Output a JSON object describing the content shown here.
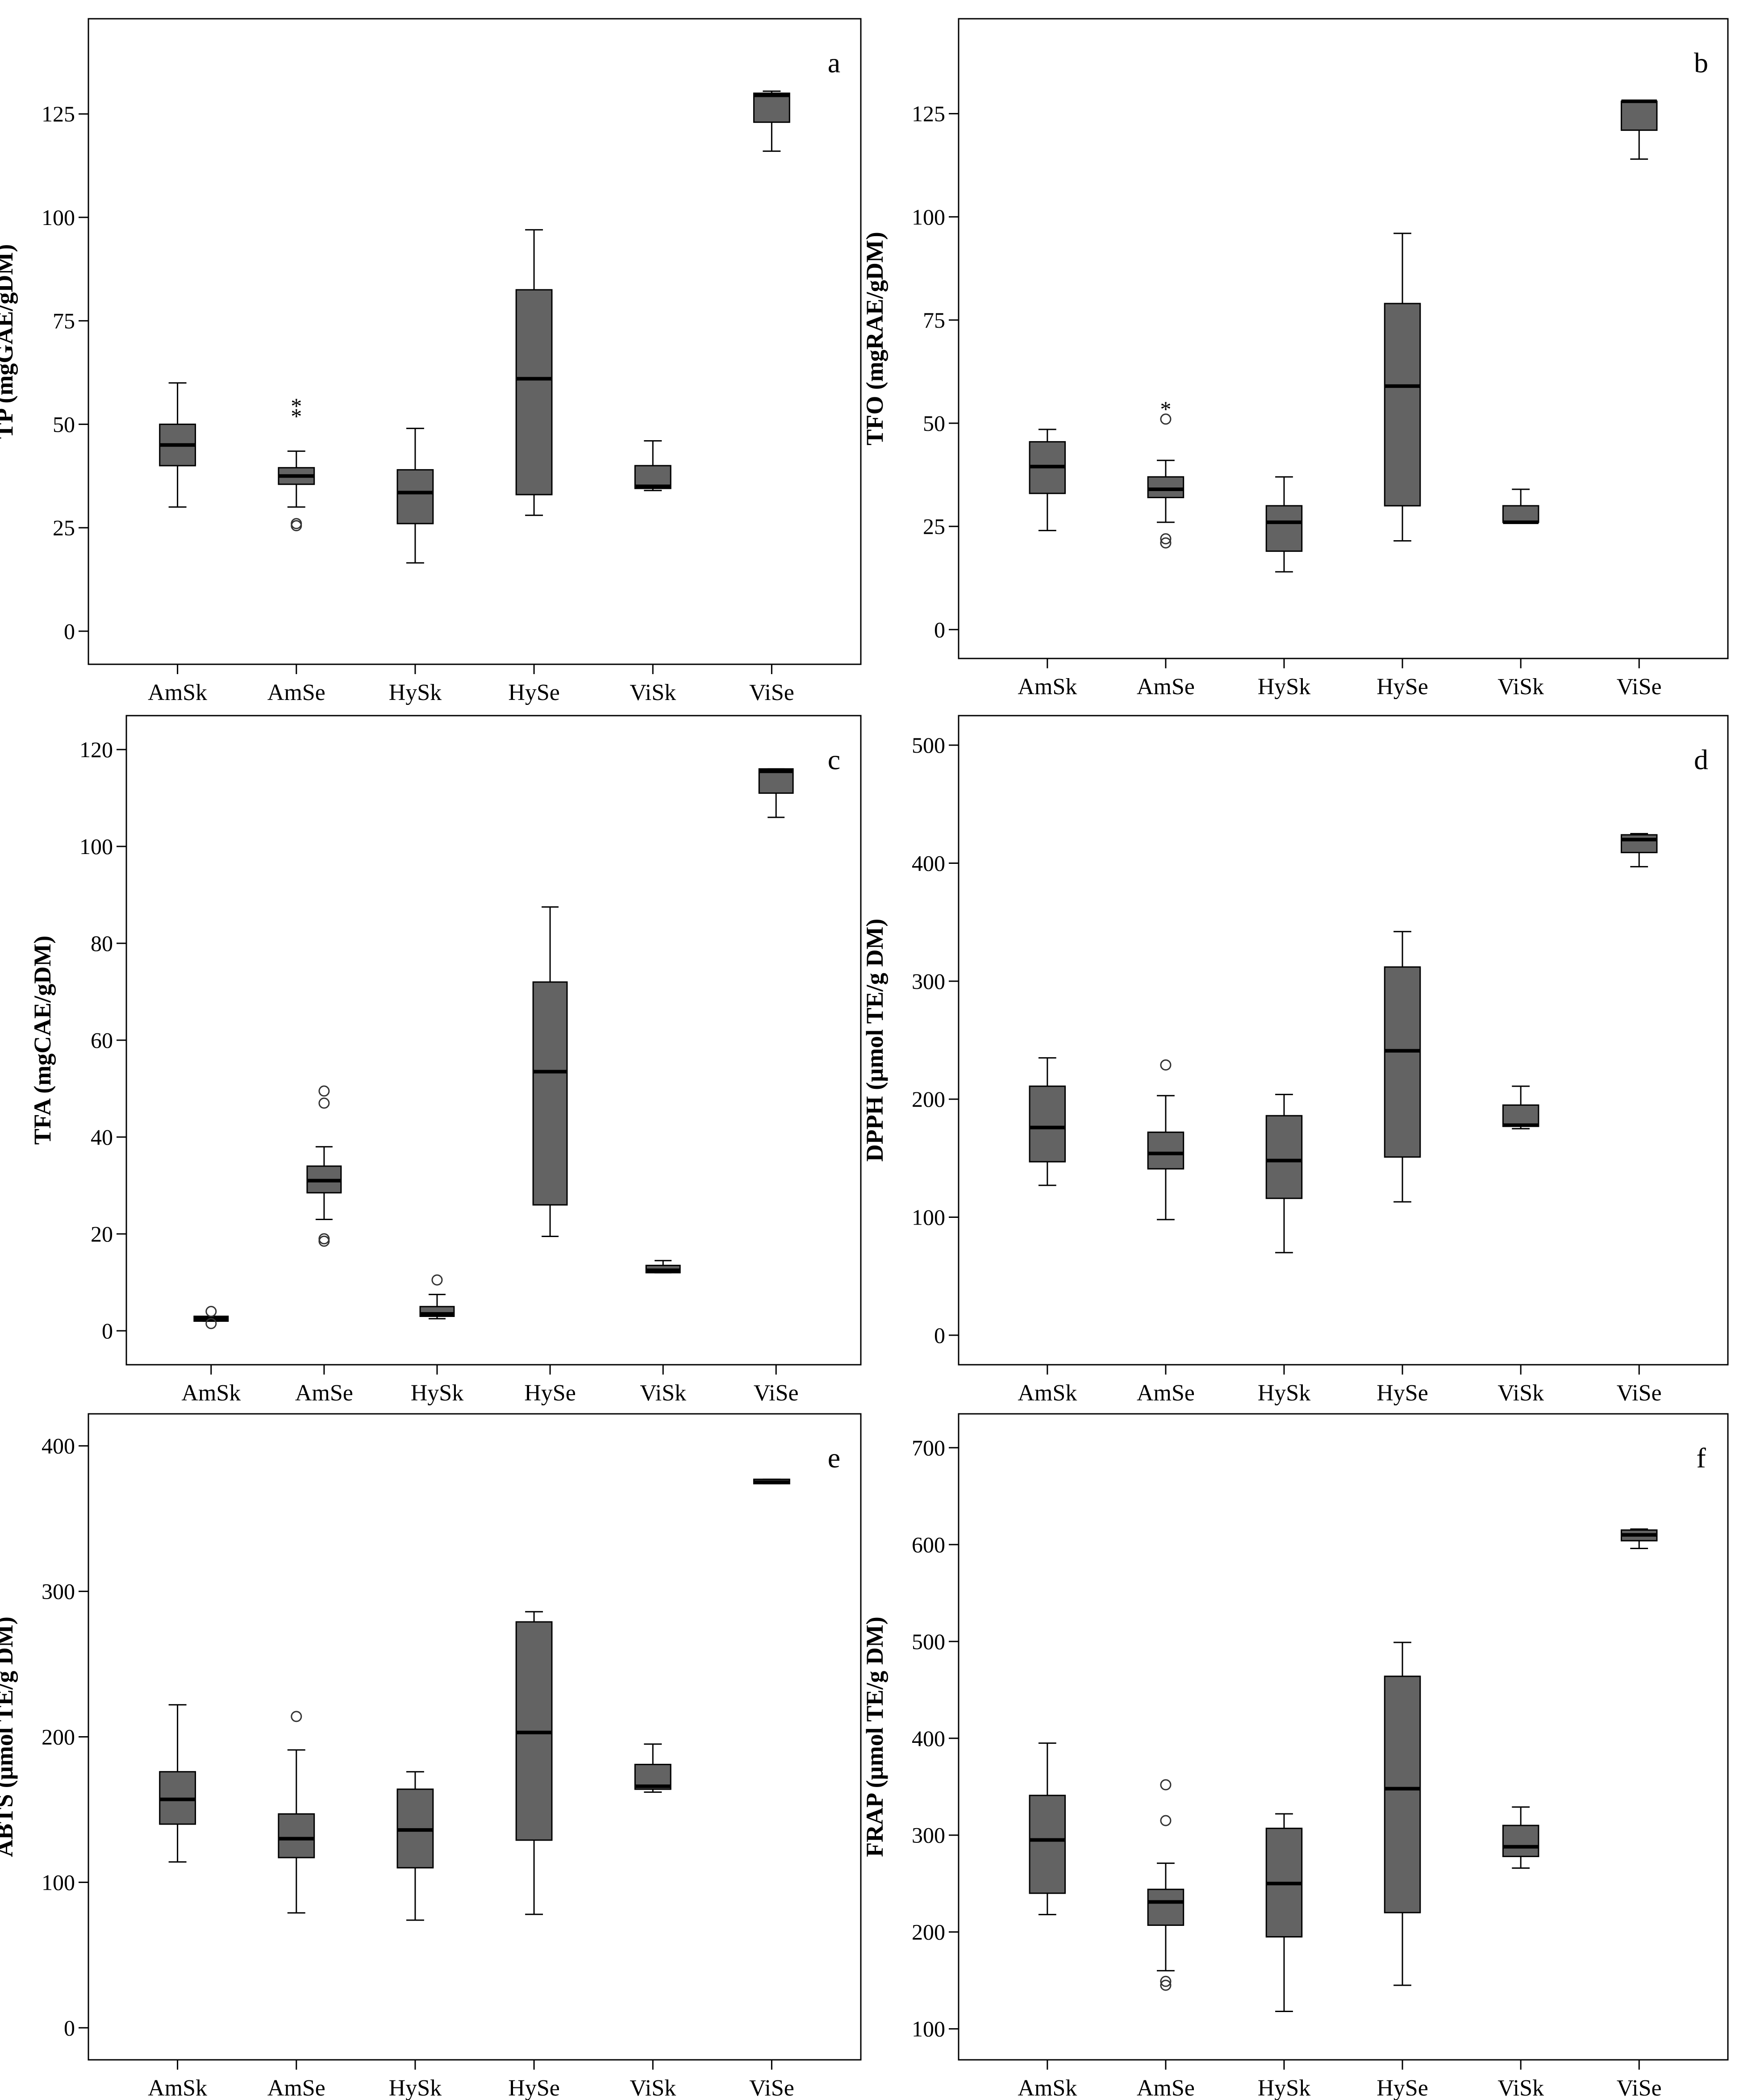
{
  "figure": {
    "background": "#ffffff",
    "box_fill": "#636363",
    "line_color": "#000000",
    "outlier_marker": "circle",
    "extreme_marker": "*"
  },
  "chart_data": [
    {
      "type": "boxplot",
      "panel": "a",
      "ylabel": "TP (mgGAE/gDM)",
      "categories": [
        "AmSk",
        "AmSe",
        "HySk",
        "HySe",
        "ViSk",
        "ViSe"
      ],
      "yticks": [
        0,
        25,
        50,
        75,
        100,
        125
      ],
      "tick_labels": [
        "0",
        "25",
        "50",
        "75",
        "100",
        "125"
      ],
      "ylim": [
        -8,
        148
      ],
      "boxes": [
        {
          "whisker_low": 30,
          "q1": 40,
          "median": 45,
          "q3": 50,
          "whisker_high": 60,
          "outliers": [],
          "extremes": []
        },
        {
          "whisker_low": 30,
          "q1": 35.5,
          "median": 37.5,
          "q3": 39.5,
          "whisker_high": 43.5,
          "outliers": [
            25.5,
            26
          ],
          "extremes": [
            52.5,
            55
          ]
        },
        {
          "whisker_low": 16.5,
          "q1": 26,
          "median": 33.5,
          "q3": 39,
          "whisker_high": 49,
          "outliers": [],
          "extremes": []
        },
        {
          "whisker_low": 28,
          "q1": 33,
          "median": 61,
          "q3": 82.5,
          "whisker_high": 97,
          "outliers": [],
          "extremes": []
        },
        {
          "whisker_low": 34,
          "q1": 34.5,
          "median": 35,
          "q3": 40,
          "whisker_high": 46,
          "outliers": [],
          "extremes": []
        },
        {
          "whisker_low": 116,
          "q1": 123,
          "median": 129.5,
          "q3": 130,
          "whisker_high": 130.5,
          "outliers": [],
          "extremes": []
        }
      ]
    },
    {
      "type": "boxplot",
      "panel": "b",
      "ylabel": "TFO (mgRAE/gDM)",
      "categories": [
        "AmSk",
        "AmSe",
        "HySk",
        "HySe",
        "ViSk",
        "ViSe"
      ],
      "yticks": [
        0,
        25,
        50,
        75,
        100,
        125
      ],
      "tick_labels": [
        "0",
        "25",
        "50",
        "75",
        "100",
        "125"
      ],
      "ylim": [
        -7,
        148
      ],
      "boxes": [
        {
          "whisker_low": 24,
          "q1": 33,
          "median": 39.5,
          "q3": 45.5,
          "whisker_high": 48.5,
          "outliers": [],
          "extremes": []
        },
        {
          "whisker_low": 26,
          "q1": 32,
          "median": 34,
          "q3": 37,
          "whisker_high": 41,
          "outliers": [
            21,
            22,
            51
          ],
          "extremes": [
            54
          ]
        },
        {
          "whisker_low": 14,
          "q1": 19,
          "median": 26,
          "q3": 30,
          "whisker_high": 37,
          "outliers": [],
          "extremes": []
        },
        {
          "whisker_low": 21.5,
          "q1": 30,
          "median": 59,
          "q3": 79,
          "whisker_high": 96,
          "outliers": [],
          "extremes": []
        },
        {
          "whisker_low": 26,
          "q1": 26,
          "median": 26,
          "q3": 30,
          "whisker_high": 34,
          "outliers": [],
          "extremes": []
        },
        {
          "whisker_low": 114,
          "q1": 121,
          "median": 128,
          "q3": 128,
          "whisker_high": 128,
          "outliers": [],
          "extremes": []
        }
      ]
    },
    {
      "type": "boxplot",
      "panel": "c",
      "ylabel": "TFA (mgCAE/gDM)",
      "categories": [
        "AmSk",
        "AmSe",
        "HySk",
        "HySe",
        "ViSk",
        "ViSe"
      ],
      "yticks": [
        0,
        20,
        40,
        60,
        80,
        100,
        120
      ],
      "tick_labels": [
        "0",
        "20",
        "40",
        "60",
        "80",
        "100",
        "120"
      ],
      "ylim": [
        -7,
        127
      ],
      "boxes": [
        {
          "whisker_low": 2,
          "q1": 2,
          "median": 2.5,
          "q3": 3,
          "whisker_high": 3,
          "outliers": [
            1.5,
            4
          ],
          "extremes": []
        },
        {
          "whisker_low": 23,
          "q1": 28.5,
          "median": 31,
          "q3": 34,
          "whisker_high": 38,
          "outliers": [
            18.5,
            19,
            47,
            49.5
          ],
          "extremes": []
        },
        {
          "whisker_low": 2.5,
          "q1": 3,
          "median": 3.5,
          "q3": 5,
          "whisker_high": 7.5,
          "outliers": [
            10.5
          ],
          "extremes": []
        },
        {
          "whisker_low": 19.5,
          "q1": 26,
          "median": 53.5,
          "q3": 72,
          "whisker_high": 87.5,
          "outliers": [],
          "extremes": []
        },
        {
          "whisker_low": 12,
          "q1": 12,
          "median": 12.5,
          "q3": 13.5,
          "whisker_high": 14.5,
          "outliers": [],
          "extremes": []
        },
        {
          "whisker_low": 106,
          "q1": 111,
          "median": 115.5,
          "q3": 116,
          "whisker_high": 116,
          "outliers": [],
          "extremes": []
        }
      ]
    },
    {
      "type": "boxplot",
      "panel": "d",
      "ylabel": "DPPH (µmol TE/g DM)",
      "categories": [
        "AmSk",
        "AmSe",
        "HySk",
        "HySe",
        "ViSk",
        "ViSe"
      ],
      "yticks": [
        0,
        100,
        200,
        300,
        400,
        500
      ],
      "tick_labels": [
        "0",
        "100",
        "200",
        "300",
        "400",
        "500"
      ],
      "ylim": [
        -25,
        525
      ],
      "boxes": [
        {
          "whisker_low": 127,
          "q1": 147,
          "median": 176,
          "q3": 211,
          "whisker_high": 235,
          "outliers": [],
          "extremes": []
        },
        {
          "whisker_low": 98,
          "q1": 141,
          "median": 154,
          "q3": 172,
          "whisker_high": 203,
          "outliers": [
            229
          ],
          "extremes": []
        },
        {
          "whisker_low": 70,
          "q1": 116,
          "median": 148,
          "q3": 186,
          "whisker_high": 204,
          "outliers": [],
          "extremes": []
        },
        {
          "whisker_low": 113,
          "q1": 151,
          "median": 241,
          "q3": 312,
          "whisker_high": 342,
          "outliers": [],
          "extremes": []
        },
        {
          "whisker_low": 175,
          "q1": 177,
          "median": 178,
          "q3": 195,
          "whisker_high": 211,
          "outliers": [],
          "extremes": []
        },
        {
          "whisker_low": 397,
          "q1": 409,
          "median": 420,
          "q3": 424,
          "whisker_high": 425,
          "outliers": [],
          "extremes": []
        }
      ]
    },
    {
      "type": "boxplot",
      "panel": "e",
      "ylabel": "ABTS (µmol TE/g DM)",
      "categories": [
        "AmSk",
        "AmSe",
        "HySk",
        "HySe",
        "ViSk",
        "ViSe"
      ],
      "yticks": [
        0,
        100,
        200,
        300,
        400
      ],
      "tick_labels": [
        "0",
        "100",
        "200",
        "300",
        "400"
      ],
      "ylim": [
        -22,
        422
      ],
      "boxes": [
        {
          "whisker_low": 114,
          "q1": 140,
          "median": 157,
          "q3": 176,
          "whisker_high": 222,
          "outliers": [],
          "extremes": []
        },
        {
          "whisker_low": 79,
          "q1": 117,
          "median": 130,
          "q3": 147,
          "whisker_high": 191,
          "outliers": [
            214
          ],
          "extremes": []
        },
        {
          "whisker_low": 74,
          "q1": 110,
          "median": 136,
          "q3": 164,
          "whisker_high": 176,
          "outliers": [],
          "extremes": []
        },
        {
          "whisker_low": 78,
          "q1": 129,
          "median": 203,
          "q3": 279,
          "whisker_high": 286,
          "outliers": [],
          "extremes": []
        },
        {
          "whisker_low": 162,
          "q1": 164,
          "median": 166,
          "q3": 181,
          "whisker_high": 195,
          "outliers": [],
          "extremes": []
        },
        {
          "whisker_low": 374,
          "q1": 374,
          "median": 375,
          "q3": 377,
          "whisker_high": 377,
          "outliers": [],
          "extremes": []
        }
      ]
    },
    {
      "type": "boxplot",
      "panel": "f",
      "ylabel": "FRAP (µmol TE/g DM)",
      "categories": [
        "AmSk",
        "AmSe",
        "HySk",
        "HySe",
        "ViSk",
        "ViSe"
      ],
      "yticks": [
        100,
        200,
        300,
        400,
        500,
        600,
        700
      ],
      "tick_labels": [
        "100",
        "200",
        "300",
        "400",
        "500",
        "600",
        "700"
      ],
      "ylim": [
        68,
        735
      ],
      "boxes": [
        {
          "whisker_low": 218,
          "q1": 240,
          "median": 295,
          "q3": 341,
          "whisker_high": 395,
          "outliers": [],
          "extremes": []
        },
        {
          "whisker_low": 160,
          "q1": 207,
          "median": 231,
          "q3": 244,
          "whisker_high": 271,
          "outliers": [
            145,
            149,
            315,
            352
          ],
          "extremes": []
        },
        {
          "whisker_low": 118,
          "q1": 195,
          "median": 250,
          "q3": 307,
          "whisker_high": 322,
          "outliers": [],
          "extremes": []
        },
        {
          "whisker_low": 145,
          "q1": 220,
          "median": 348,
          "q3": 464,
          "whisker_high": 499,
          "outliers": [],
          "extremes": []
        },
        {
          "whisker_low": 266,
          "q1": 278,
          "median": 288,
          "q3": 310,
          "whisker_high": 329,
          "outliers": [],
          "extremes": []
        },
        {
          "whisker_low": 596,
          "q1": 604,
          "median": 610,
          "q3": 615,
          "whisker_high": 616,
          "outliers": [],
          "extremes": []
        }
      ]
    }
  ]
}
